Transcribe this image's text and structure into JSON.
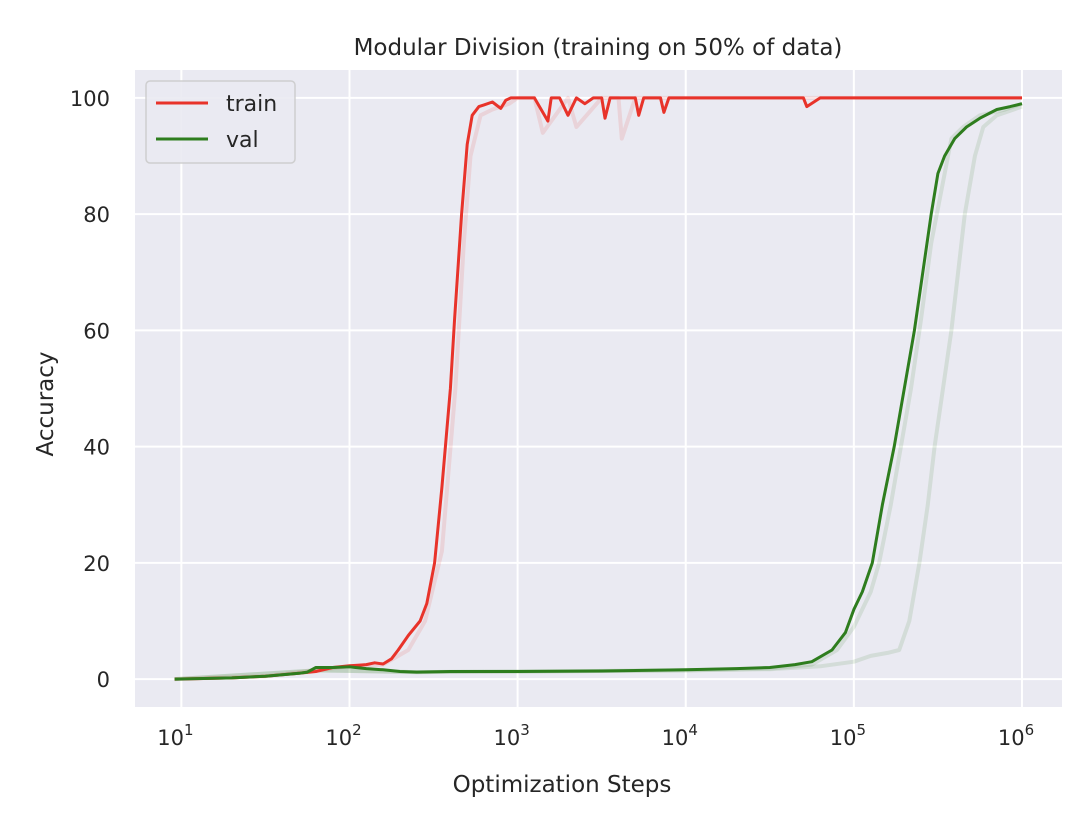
{
  "chart_data": {
    "type": "line",
    "title": "Modular Division (training on 50% of data)",
    "xlabel": "Optimization Steps",
    "ylabel": "Accuracy",
    "xscale": "log",
    "xlim": [
      5.3,
      1730000
    ],
    "ylim": [
      -4.8,
      104.8
    ],
    "xticks": [
      {
        "value": 10,
        "base": "10",
        "exp": "1"
      },
      {
        "value": 100,
        "base": "10",
        "exp": "2"
      },
      {
        "value": 1000,
        "base": "10",
        "exp": "3"
      },
      {
        "value": 10000,
        "base": "10",
        "exp": "4"
      },
      {
        "value": 100000,
        "base": "10",
        "exp": "5"
      },
      {
        "value": 1000000,
        "base": "10",
        "exp": "6"
      }
    ],
    "yticks": [
      "0",
      "20",
      "40",
      "60",
      "80",
      "100"
    ],
    "grid": true,
    "background": "#eaeaf2",
    "legend": {
      "position": "top-left"
    },
    "series": [
      {
        "name": "train",
        "color": "#e8332a",
        "x_log10": [
          0.96,
          1.3,
          1.5,
          1.7,
          1.8,
          1.9,
          2.0,
          2.05,
          2.1,
          2.15,
          2.2,
          2.25,
          2.29,
          2.35,
          2.42,
          2.46,
          2.506,
          2.55,
          2.6,
          2.625,
          2.667,
          2.7,
          2.73,
          2.77,
          2.8,
          2.85,
          2.9,
          2.93,
          2.96,
          3.0,
          3.1,
          3.18,
          3.2,
          3.25,
          3.3,
          3.35,
          3.4,
          3.45,
          3.5,
          3.52,
          3.55,
          3.7,
          3.72,
          3.75,
          3.85,
          3.87,
          3.9,
          4.0,
          4.5,
          4.7,
          4.72,
          4.8,
          5.0,
          5.5,
          6.0
        ],
        "y": [
          0,
          0.2,
          0.5,
          1.0,
          1.3,
          2.0,
          2.3,
          2.4,
          2.5,
          2.8,
          2.6,
          3.5,
          5.0,
          7.5,
          10,
          13,
          20,
          33,
          50,
          62,
          80,
          92,
          97,
          98.5,
          98.8,
          99.3,
          98.2,
          99.6,
          100,
          100,
          100,
          96,
          100,
          100,
          97,
          100,
          99,
          100,
          100,
          96.5,
          100,
          100,
          97,
          100,
          100,
          97.5,
          100,
          100,
          100,
          100,
          98.5,
          100,
          100,
          100,
          100
        ]
      },
      {
        "name": "val",
        "color": "#2e7d1e",
        "x_log10": [
          0.96,
          1.3,
          1.5,
          1.7,
          1.75,
          1.8,
          1.9,
          2.0,
          2.1,
          2.2,
          2.3,
          2.4,
          2.6,
          3.0,
          3.5,
          4.0,
          4.3,
          4.5,
          4.65,
          4.75,
          4.87,
          4.95,
          5.0,
          5.05,
          5.11,
          5.17,
          5.24,
          5.3,
          5.36,
          5.41,
          5.46,
          5.5,
          5.54,
          5.6,
          5.67,
          5.75,
          5.85,
          5.93,
          6.0
        ],
        "y": [
          0,
          0.2,
          0.5,
          1.0,
          1.2,
          2.0,
          2.0,
          2.1,
          1.8,
          1.6,
          1.3,
          1.2,
          1.3,
          1.3,
          1.4,
          1.6,
          1.8,
          2.0,
          2.5,
          3.0,
          5.0,
          8.0,
          12,
          15,
          20,
          30,
          40,
          50,
          60,
          70,
          80,
          87,
          90,
          93,
          95,
          96.5,
          98,
          98.5,
          99
        ]
      },
      {
        "color": "#e8332a",
        "faint": true,
        "x_log10": [
          0.96,
          1.5,
          2.0,
          2.2,
          2.35,
          2.45,
          2.55,
          2.63,
          2.68,
          2.72,
          2.78,
          2.85,
          2.95,
          3.0,
          3.1,
          3.15,
          3.3,
          3.35,
          3.5,
          3.6,
          3.62,
          3.7,
          4.0,
          6.0
        ],
        "y": [
          0,
          0.5,
          2.2,
          2.5,
          5,
          10,
          22,
          50,
          75,
          90,
          97,
          98,
          99,
          100,
          100,
          94,
          100,
          95,
          100,
          100,
          93,
          100,
          100,
          100
        ]
      },
      {
        "color": "#2e7d1e",
        "faint": true,
        "x_log10": [
          0.96,
          1.8,
          2.4,
          3.0,
          4.0,
          4.5,
          4.75,
          4.9,
          5.0,
          5.1,
          5.15,
          5.22,
          5.28,
          5.34,
          5.4,
          5.46,
          5.52,
          5.58,
          5.65,
          5.75,
          5.9,
          6.0
        ],
        "y": [
          0,
          1.5,
          1.2,
          1.3,
          1.5,
          1.8,
          2.5,
          5,
          9,
          15,
          20,
          30,
          40,
          50,
          62,
          75,
          84,
          93,
          95,
          97,
          98,
          99
        ]
      },
      {
        "color": "#2e7d1e",
        "faint": true,
        "x_log10": [
          0.96,
          1.8,
          2.4,
          3.0,
          4.0,
          4.5,
          4.8,
          5.0,
          5.1,
          5.2,
          5.27,
          5.33,
          5.39,
          5.44,
          5.48,
          5.53,
          5.58,
          5.62,
          5.66,
          5.72,
          5.77,
          5.85,
          6.0
        ],
        "y": [
          0,
          1.5,
          1.2,
          1.3,
          1.5,
          1.7,
          2.2,
          3,
          4,
          4.5,
          5,
          10,
          20,
          30,
          40,
          50,
          60,
          70,
          80,
          90,
          95,
          97,
          98.5
        ]
      }
    ]
  }
}
